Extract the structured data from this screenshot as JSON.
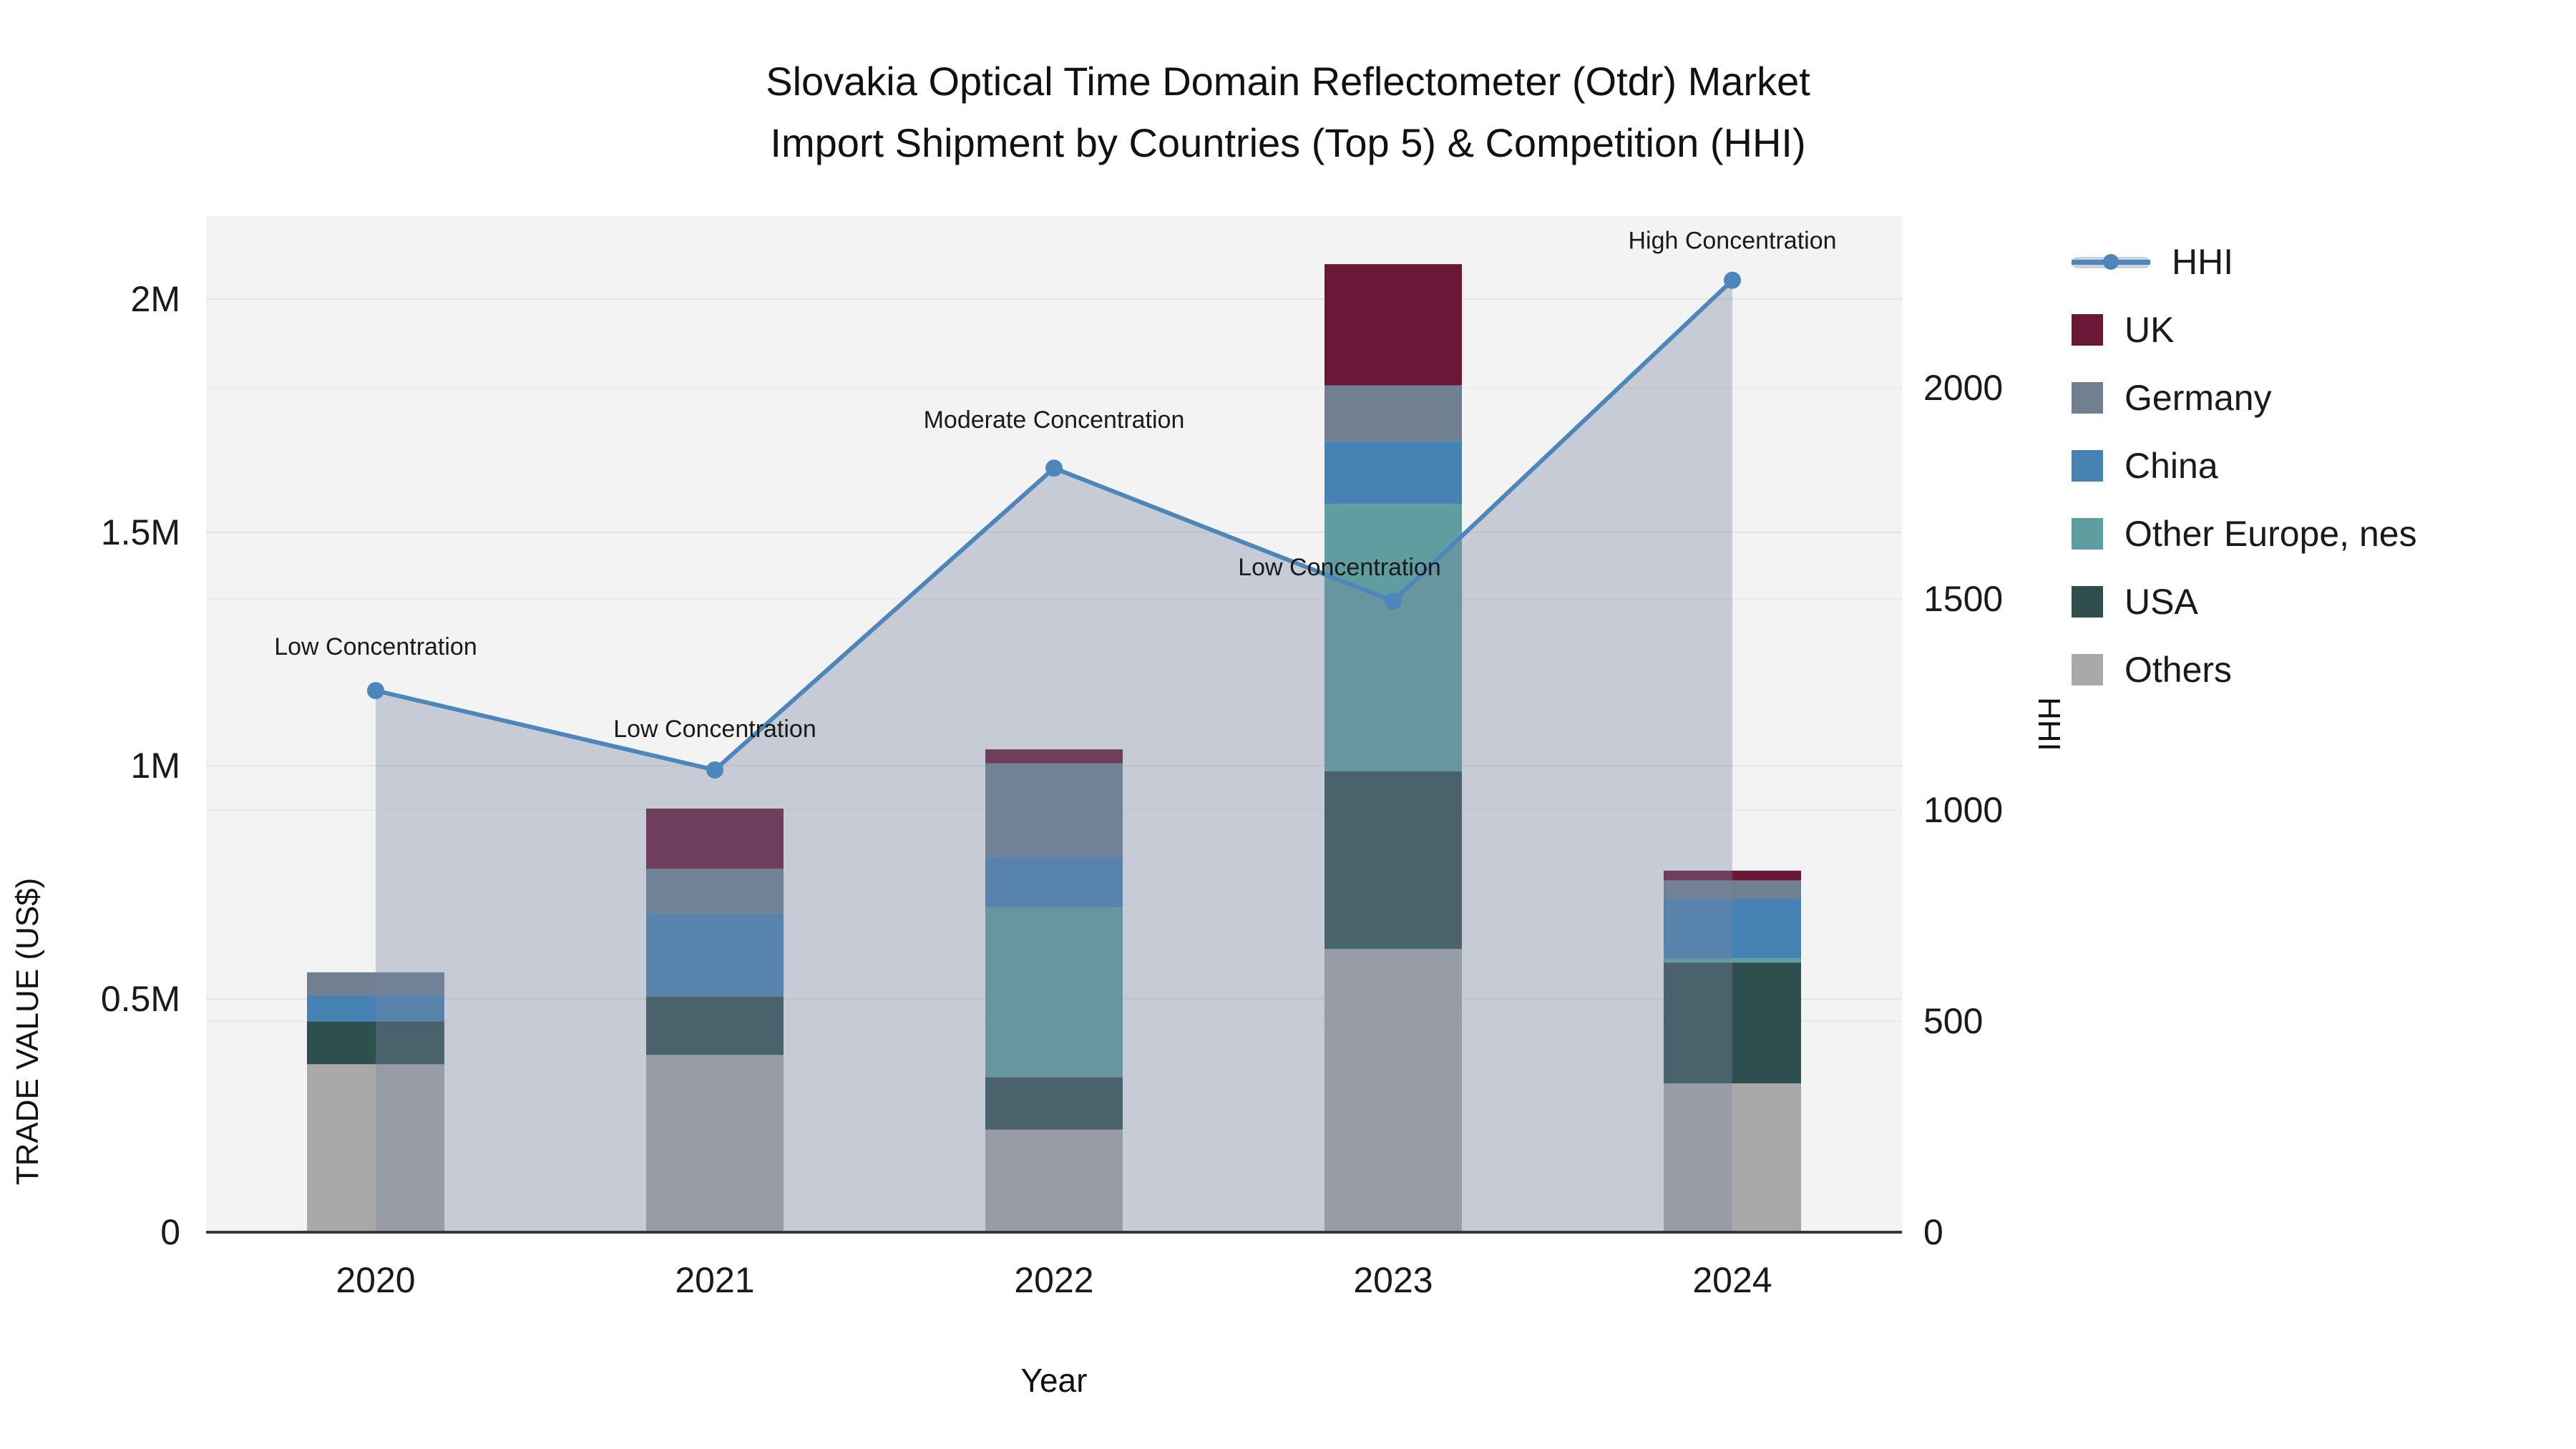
{
  "title": {
    "line1": "Slovakia Optical Time Domain Reflectometer (Otdr) Market",
    "line2": "Import Shipment by Countries (Top 5) & Competition (HHI)"
  },
  "axes": {
    "x": {
      "title": "Year",
      "categories": [
        "2020",
        "2021",
        "2022",
        "2023",
        "2024"
      ]
    },
    "y_left": {
      "title": "TRADE VALUE (US$)",
      "tick_labels": [
        "0",
        "0.5M",
        "1M",
        "1.5M",
        "2M"
      ],
      "tick_values": [
        0,
        500000,
        1000000,
        1500000,
        2000000
      ],
      "range": [
        0,
        2178000
      ]
    },
    "y_right": {
      "title": "HHI",
      "tick_labels": [
        "0",
        "500",
        "1000",
        "1500",
        "2000"
      ],
      "tick_values": [
        0,
        500,
        1000,
        1500,
        2000
      ],
      "range": [
        0,
        2407
      ]
    }
  },
  "chart_data": {
    "type": "bar+line",
    "categories": [
      "2020",
      "2021",
      "2022",
      "2023",
      "2024"
    ],
    "bar_series": [
      {
        "name": "Others",
        "color": "#a9a9a9",
        "values": [
          360000,
          380000,
          220000,
          607000,
          319000
        ]
      },
      {
        "name": "USA",
        "color": "#2f4f4f",
        "values": [
          92000,
          125000,
          112000,
          381000,
          259000
        ]
      },
      {
        "name": "Other Europe, nes",
        "color": "#5f9ea0",
        "values": [
          0,
          0,
          364000,
          573000,
          9000
        ]
      },
      {
        "name": "China",
        "color": "#4682b4",
        "values": [
          55000,
          178000,
          109000,
          135000,
          127000
        ]
      },
      {
        "name": "Germany",
        "color": "#708090",
        "values": [
          50000,
          96000,
          200000,
          119000,
          40000
        ]
      },
      {
        "name": "UK",
        "color": "#6b1738",
        "values": [
          0,
          129000,
          30000,
          260000,
          21000
        ]
      }
    ],
    "line_series": {
      "name": "HHI",
      "values": [
        1283,
        1095,
        1810,
        1495,
        2255
      ],
      "color": "#4d86ba",
      "area_fill": "rgba(118,134,160,0.36)"
    },
    "annotations": [
      {
        "x": "2020",
        "text": "Low Concentration"
      },
      {
        "x": "2021",
        "text": "Low Concentration"
      },
      {
        "x": "2022",
        "text": "Moderate Concentration"
      },
      {
        "x": "2023",
        "text": "Low Concentration"
      },
      {
        "x": "2024",
        "text": "High Concentration"
      }
    ],
    "plot_bg": "#f3f3f3",
    "grid_color_left": "#e3e3e3",
    "grid_color_right": "#ebebeb",
    "axis_line_color": "#3b3b3b",
    "tick_text_color": "#1a1a1a"
  },
  "legend": {
    "items": [
      {
        "label": "HHI",
        "type": "line",
        "color": "#4d86ba"
      },
      {
        "label": "UK",
        "type": "square",
        "color": "#6b1738"
      },
      {
        "label": "Germany",
        "type": "square",
        "color": "#708090"
      },
      {
        "label": "China",
        "type": "square",
        "color": "#4682b4"
      },
      {
        "label": "Other Europe, nes",
        "type": "square",
        "color": "#5f9ea0"
      },
      {
        "label": "USA",
        "type": "square",
        "color": "#2f4f4f"
      },
      {
        "label": "Others",
        "type": "square",
        "color": "#a9a9a9"
      }
    ]
  }
}
